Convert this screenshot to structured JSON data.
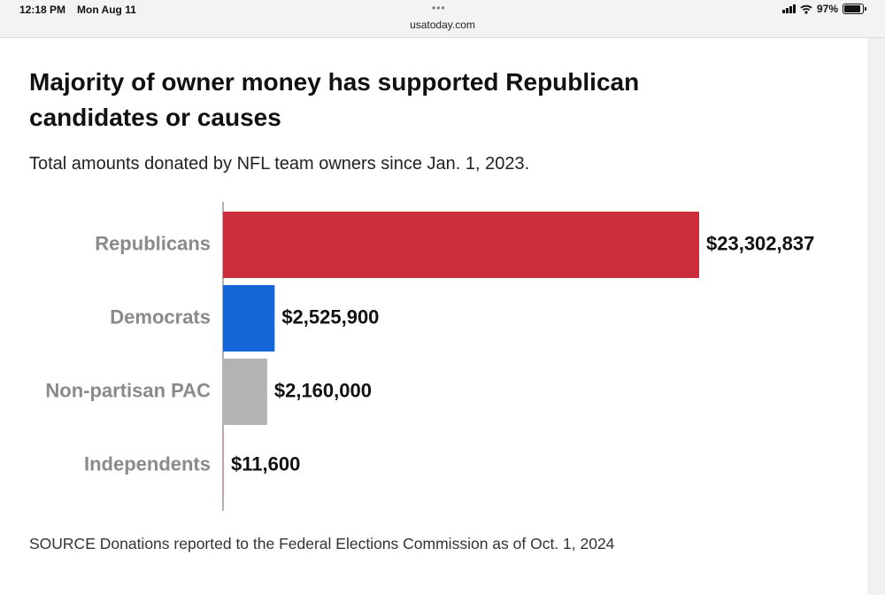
{
  "status_bar": {
    "time": "12:18 PM",
    "date": "Mon Aug 11",
    "url": "usatoday.com",
    "battery": "97%"
  },
  "colors": {
    "republicans": "#cc2d3a",
    "democrats": "#1565d8",
    "nonpartisan": "#b3b3b3",
    "independents": "#c79aa6"
  },
  "chart_data": {
    "type": "bar",
    "orientation": "horizontal",
    "title": "Majority of owner money has supported Republican candidates or causes",
    "subtitle": "Total amounts donated by NFL team owners since Jan. 1, 2023.",
    "categories": [
      "Republicans",
      "Democrats",
      "Non-partisan PAC",
      "Independents"
    ],
    "values": [
      23302837,
      2525900,
      2160000,
      11600
    ],
    "value_labels": [
      "$23,302,837",
      "$2,525,900",
      "$2,160,000",
      "$11,600"
    ],
    "xlim": [
      0,
      23302837
    ],
    "grid": false,
    "legend": "none",
    "source": "SOURCE Donations reported to the Federal Elections Commission as of Oct. 1, 2024"
  }
}
